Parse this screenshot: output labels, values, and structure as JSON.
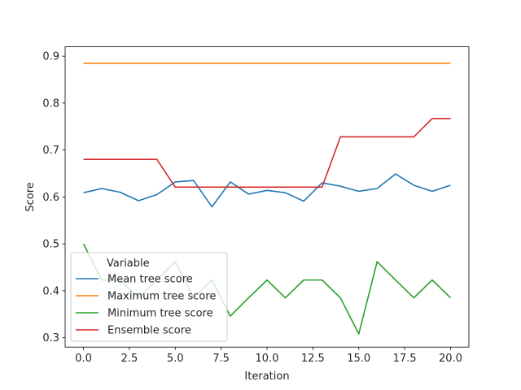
{
  "chart_data": {
    "type": "line",
    "xlabel": "Iteration",
    "ylabel": "Score",
    "xlim": [
      -1,
      21
    ],
    "ylim": [
      0.28,
      0.92
    ],
    "xticks": [
      0.0,
      2.5,
      5.0,
      7.5,
      10.0,
      12.5,
      15.0,
      17.5,
      20.0
    ],
    "xtick_labels": [
      "0.0",
      "2.5",
      "5.0",
      "7.5",
      "10.0",
      "12.5",
      "15.0",
      "17.5",
      "20.0"
    ],
    "yticks": [
      0.3,
      0.4,
      0.5,
      0.6,
      0.7,
      0.8,
      0.9
    ],
    "ytick_labels": [
      "0.3",
      "0.4",
      "0.5",
      "0.6",
      "0.7",
      "0.8",
      "0.9"
    ],
    "grid": false,
    "legend": {
      "title": "Variable",
      "placement": "lower-left"
    },
    "x": [
      0,
      1,
      2,
      3,
      4,
      5,
      6,
      7,
      8,
      9,
      10,
      11,
      12,
      13,
      14,
      15,
      16,
      17,
      18,
      19,
      20
    ],
    "series": [
      {
        "name": "Mean tree score",
        "color": "#1f77b4",
        "values": [
          0.609,
          0.618,
          0.61,
          0.592,
          0.605,
          0.632,
          0.635,
          0.579,
          0.632,
          0.606,
          0.614,
          0.609,
          0.591,
          0.63,
          0.623,
          0.612,
          0.618,
          0.649,
          0.625,
          0.612,
          0.625
        ]
      },
      {
        "name": "Maximum tree score",
        "color": "#ff7f0e",
        "values": [
          0.885,
          0.885,
          0.885,
          0.885,
          0.885,
          0.885,
          0.885,
          0.885,
          0.885,
          0.885,
          0.885,
          0.885,
          0.885,
          0.885,
          0.885,
          0.885,
          0.885,
          0.885,
          0.885,
          0.885,
          0.885
        ]
      },
      {
        "name": "Minimum tree score",
        "color": "#2ca02c",
        "values": [
          0.5,
          0.423,
          0.423,
          0.385,
          0.423,
          0.462,
          0.385,
          0.423,
          0.346,
          0.385,
          0.423,
          0.385,
          0.423,
          0.423,
          0.385,
          0.308,
          0.462,
          0.423,
          0.385,
          0.423,
          0.385
        ]
      },
      {
        "name": "Ensemble score",
        "color": "#d62728",
        "values": [
          0.68,
          0.68,
          0.68,
          0.68,
          0.68,
          0.621,
          0.621,
          0.621,
          0.621,
          0.621,
          0.621,
          0.621,
          0.621,
          0.621,
          0.728,
          0.728,
          0.728,
          0.728,
          0.728,
          0.767,
          0.767
        ]
      }
    ]
  }
}
